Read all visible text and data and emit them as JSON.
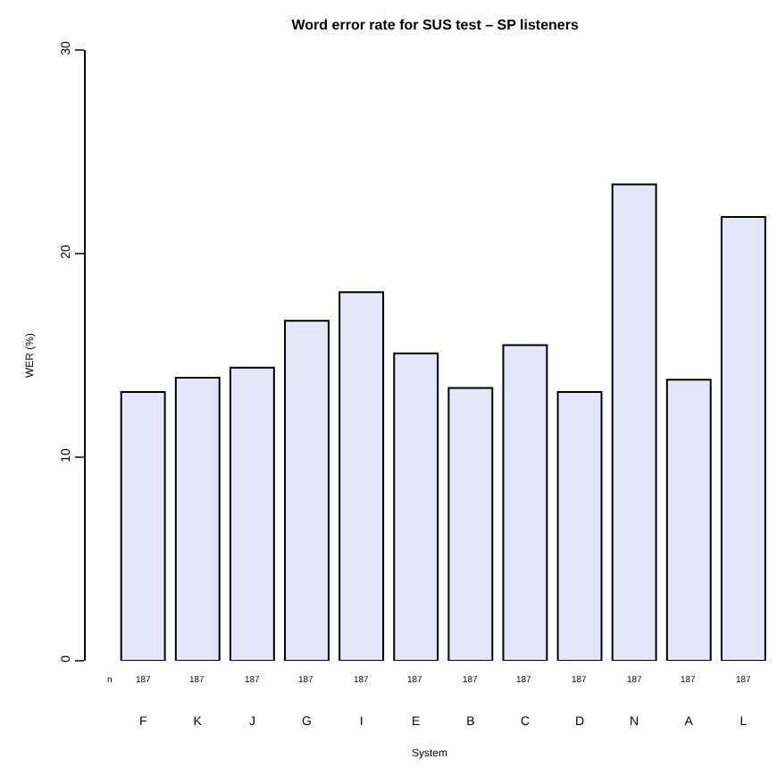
{
  "chart_data": {
    "type": "bar",
    "title": "Word error rate for SUS test – SP listeners",
    "xlabel": "System",
    "ylabel": "WER (%)",
    "categories": [
      "F",
      "K",
      "J",
      "G",
      "I",
      "E",
      "B",
      "C",
      "D",
      "N",
      "A",
      "L"
    ],
    "values": [
      13.2,
      13.9,
      14.4,
      16.7,
      18.1,
      15.1,
      13.4,
      15.5,
      13.2,
      23.4,
      13.8,
      21.8
    ],
    "color": "#e6e6fa",
    "ylim": [
      0,
      30
    ],
    "yticks": [
      0,
      10,
      20,
      30
    ],
    "grid": false,
    "annotations": [
      "n",
      "187",
      "187",
      "187",
      "187",
      "187",
      "187",
      "187",
      "187",
      "187",
      "187",
      "187",
      "187"
    ]
  }
}
